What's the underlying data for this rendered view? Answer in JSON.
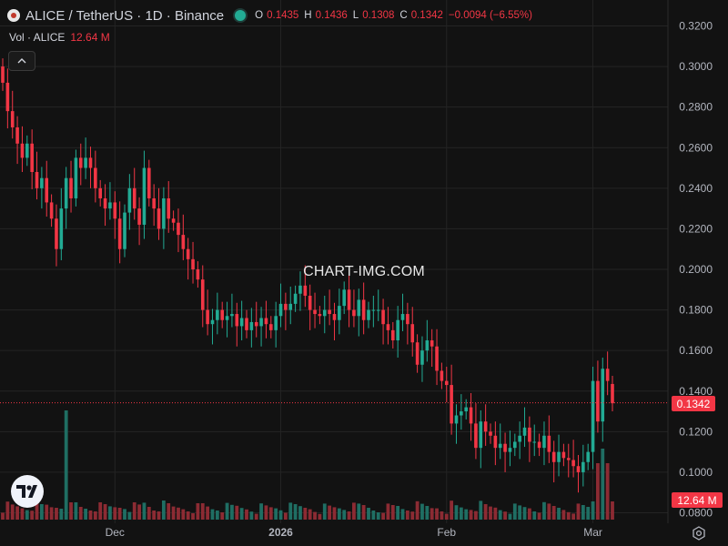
{
  "header": {
    "title": "ALICE / TetherUS · 1D · Binance",
    "ohlc": [
      {
        "key": "O",
        "value": "0.1435"
      },
      {
        "key": "H",
        "value": "0.1436"
      },
      {
        "key": "L",
        "value": "0.1308"
      },
      {
        "key": "C",
        "value": "0.1342"
      }
    ],
    "change": "−0.0094 (−6.55%)"
  },
  "volume_legend": {
    "label": "Vol · ALICE",
    "value": "12.64 M"
  },
  "watermark": "CHART-IMG.COM",
  "last_price_label": "0.1342",
  "last_volume_label": "12.64 M",
  "colors": {
    "up": "#22ab94",
    "down": "#f23645",
    "background": "#121212",
    "grid": "#242424",
    "up_volume": "#1f6e63",
    "down_volume": "#8c2b33"
  },
  "chart_data": {
    "type": "candlestick",
    "symbol": "ALICE / TetherUS",
    "interval": "1D",
    "exchange": "Binance",
    "y_ticks": [
      "0.3200",
      "0.3000",
      "0.2800",
      "0.2600",
      "0.2400",
      "0.2200",
      "0.2000",
      "0.1800",
      "0.1600",
      "0.1400",
      "0.1200",
      "0.1000",
      "0.0800"
    ],
    "ylim": [
      0.08,
      0.32
    ],
    "x_ticks": [
      "Dec",
      "2026",
      "Feb",
      "Mar"
    ],
    "last_close": 0.1342,
    "close": [
      0.292,
      0.278,
      0.27,
      0.262,
      0.255,
      0.262,
      0.248,
      0.24,
      0.245,
      0.233,
      0.225,
      0.21,
      0.23,
      0.245,
      0.235,
      0.255,
      0.25,
      0.255,
      0.25,
      0.24,
      0.235,
      0.23,
      0.233,
      0.225,
      0.21,
      0.228,
      0.24,
      0.23,
      0.222,
      0.25,
      0.235,
      0.23,
      0.22,
      0.235,
      0.225,
      0.223,
      0.217,
      0.21,
      0.205,
      0.2,
      0.195,
      0.18,
      0.173,
      0.175,
      0.18,
      0.175,
      0.177,
      0.178,
      0.172,
      0.176,
      0.17,
      0.174,
      0.172,
      0.176,
      0.173,
      0.17,
      0.177,
      0.183,
      0.18,
      0.183,
      0.188,
      0.192,
      0.187,
      0.18,
      0.178,
      0.177,
      0.18,
      0.178,
      0.175,
      0.182,
      0.19,
      0.18,
      0.177,
      0.185,
      0.175,
      0.18,
      0.18,
      0.18,
      0.173,
      0.17,
      0.165,
      0.175,
      0.178,
      0.173,
      0.164,
      0.153,
      0.16,
      0.165,
      0.162,
      0.15,
      0.145,
      0.143,
      0.124,
      0.128,
      0.13,
      0.132,
      0.124,
      0.112,
      0.125,
      0.12,
      0.118,
      0.112,
      0.114,
      0.11,
      0.112,
      0.115,
      0.118,
      0.122,
      0.115,
      0.115,
      0.112,
      0.118,
      0.11,
      0.105,
      0.11,
      0.107,
      0.106,
      0.103,
      0.1,
      0.105,
      0.11,
      0.145,
      0.125,
      0.151,
      0.145,
      0.134
    ],
    "open": [
      0.3,
      0.292,
      0.278,
      0.27,
      0.262,
      0.255,
      0.262,
      0.248,
      0.24,
      0.245,
      0.233,
      0.225,
      0.21,
      0.23,
      0.245,
      0.235,
      0.255,
      0.25,
      0.255,
      0.25,
      0.24,
      0.235,
      0.23,
      0.233,
      0.225,
      0.21,
      0.228,
      0.24,
      0.23,
      0.222,
      0.25,
      0.235,
      0.23,
      0.22,
      0.235,
      0.225,
      0.223,
      0.217,
      0.21,
      0.205,
      0.2,
      0.195,
      0.18,
      0.173,
      0.175,
      0.18,
      0.175,
      0.177,
      0.178,
      0.172,
      0.176,
      0.17,
      0.174,
      0.172,
      0.176,
      0.173,
      0.17,
      0.177,
      0.183,
      0.18,
      0.183,
      0.188,
      0.192,
      0.187,
      0.18,
      0.178,
      0.177,
      0.18,
      0.178,
      0.175,
      0.182,
      0.19,
      0.18,
      0.177,
      0.185,
      0.175,
      0.18,
      0.18,
      0.18,
      0.173,
      0.17,
      0.165,
      0.175,
      0.178,
      0.173,
      0.164,
      0.153,
      0.16,
      0.165,
      0.162,
      0.15,
      0.145,
      0.143,
      0.124,
      0.128,
      0.13,
      0.132,
      0.124,
      0.112,
      0.125,
      0.12,
      0.118,
      0.112,
      0.114,
      0.11,
      0.112,
      0.115,
      0.118,
      0.122,
      0.115,
      0.115,
      0.112,
      0.118,
      0.11,
      0.105,
      0.11,
      0.107,
      0.106,
      0.103,
      0.1,
      0.105,
      0.11,
      0.145,
      0.125,
      0.151,
      0.1435
    ],
    "volume_scale_label": "12.64 M"
  }
}
